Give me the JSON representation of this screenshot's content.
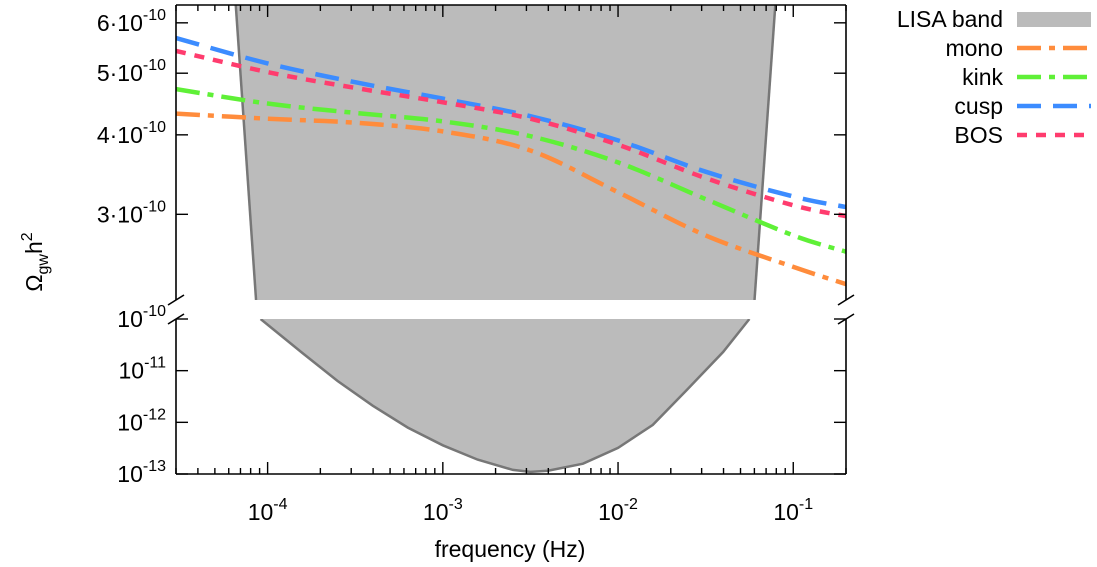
{
  "chart_data": {
    "type": "line",
    "title": "",
    "xlabel": "frequency (Hz)",
    "ylabel": "Ω_gw h^2",
    "xscale": "log",
    "yscale": "log (broken axis)",
    "xlim": [
      3e-05,
      0.2
    ],
    "ylim_upper": [
      2.2e-10,
      6.4e-10
    ],
    "ylim_lower": [
      1e-13,
      1e-10
    ],
    "x_ticks": [
      {
        "base": "10",
        "exp": "-4",
        "value": 0.0001
      },
      {
        "base": "10",
        "exp": "-3",
        "value": 0.001
      },
      {
        "base": "10",
        "exp": "-2",
        "value": 0.01
      },
      {
        "base": "10",
        "exp": "-1",
        "value": 0.1
      }
    ],
    "y_ticks_upper": [
      {
        "mant": "3·10",
        "exp": "-10",
        "value": 3e-10
      },
      {
        "mant": "4·10",
        "exp": "-10",
        "value": 4e-10
      },
      {
        "mant": "5·10",
        "exp": "-10",
        "value": 5e-10
      },
      {
        "mant": "6·10",
        "exp": "-10",
        "value": 6e-10
      }
    ],
    "y_ticks_lower": [
      {
        "mant": "10",
        "exp": "-10",
        "value": 1e-10
      },
      {
        "mant": "10",
        "exp": "-11",
        "value": 1e-11
      },
      {
        "mant": "10",
        "exp": "-12",
        "value": 1e-12
      },
      {
        "mant": "10",
        "exp": "-13",
        "value": 1e-13
      }
    ],
    "legend_position": "right",
    "band": {
      "name": "LISA band",
      "color": "#bbbbbb",
      "edge_color": "#777777",
      "x_min": 8.59e-05,
      "x_max": 0.0601,
      "upper_left_edge": [
        [
          8.59e-05,
          2.2e-10
        ],
        [
          6.58e-05,
          6.4e-10
        ]
      ],
      "upper_right_edge": [
        [
          0.0601,
          2.2e-10
        ],
        [
          0.079,
          6.4e-10
        ]
      ],
      "lower_curve": [
        [
          9.12e-05,
          1e-10
        ],
        [
          0.000158,
          2.2e-11
        ],
        [
          0.000251,
          6.3e-12
        ],
        [
          0.000398,
          2.1e-12
        ],
        [
          0.000631,
          7.9e-13
        ],
        [
          0.001,
          3.6e-13
        ],
        [
          0.00158,
          1.9e-13
        ],
        [
          0.00251,
          1.2e-13
        ],
        [
          0.00316,
          1.1e-13
        ],
        [
          0.00398,
          1.16e-13
        ],
        [
          0.00631,
          1.58e-13
        ],
        [
          0.01,
          3.2e-13
        ],
        [
          0.0158,
          8.9e-13
        ],
        [
          0.0251,
          4.5e-12
        ],
        [
          0.0398,
          2.3e-11
        ],
        [
          0.0562,
          1e-10
        ]
      ]
    },
    "series": [
      {
        "name": "mono",
        "color": "#ff8c3c",
        "dash": "24,8,6,8",
        "x": [
          3e-05,
          0.0001,
          0.000316,
          0.001,
          0.00316,
          0.01,
          0.0316,
          0.1,
          0.2
        ],
        "y": [
          4.32e-10,
          4.24e-10,
          4.18e-10,
          4.05e-10,
          3.78e-10,
          3.25e-10,
          2.78e-10,
          2.48e-10,
          2.33e-10
        ]
      },
      {
        "name": "kink",
        "color": "#5ff037",
        "dash": "24,8,6,8",
        "x": [
          3e-05,
          0.0001,
          0.000316,
          0.001,
          0.00316,
          0.01,
          0.0316,
          0.1,
          0.2
        ],
        "y": [
          4.72e-10,
          4.48e-10,
          4.33e-10,
          4.2e-10,
          3.98e-10,
          3.62e-10,
          3.17e-10,
          2.78e-10,
          2.62e-10
        ]
      },
      {
        "name": "cusp",
        "color": "#3c8cff",
        "dash": "24,12",
        "x": [
          3e-05,
          0.0001,
          0.000316,
          0.001,
          0.00316,
          0.01,
          0.0316,
          0.1,
          0.2
        ],
        "y": [
          5.68e-10,
          5.18e-10,
          4.84e-10,
          4.56e-10,
          4.28e-10,
          3.92e-10,
          3.5e-10,
          3.2e-10,
          3.08e-10
        ]
      },
      {
        "name": "BOS",
        "color": "#ff3c6e",
        "dash": "10,9",
        "x": [
          3e-05,
          0.0001,
          0.000316,
          0.001,
          0.00316,
          0.01,
          0.0316,
          0.1,
          0.2
        ],
        "y": [
          5.42e-10,
          5.02e-10,
          4.74e-10,
          4.5e-10,
          4.24e-10,
          3.86e-10,
          3.42e-10,
          3.1e-10,
          2.98e-10
        ]
      }
    ]
  }
}
